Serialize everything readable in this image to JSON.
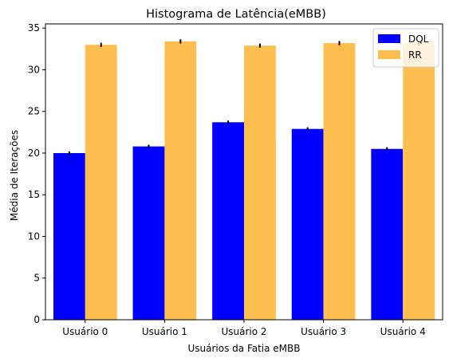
{
  "chart_data": {
    "type": "bar",
    "title": "Histograma de Latência(eMBB)",
    "xlabel": "Usuários da Fatia eMBB",
    "ylabel": "Média de Iterações",
    "categories": [
      "Usuário 0",
      "Usuário 1",
      "Usuário 2",
      "Usuário 3",
      "Usuário 4"
    ],
    "ylim": [
      0,
      35.5
    ],
    "yticks": [
      0,
      5,
      10,
      15,
      20,
      25,
      30,
      35
    ],
    "grid": false,
    "legend_position": "top-right",
    "series": [
      {
        "name": "DQL",
        "color": "#0000ff",
        "values": [
          20.0,
          20.8,
          23.7,
          22.9,
          20.5
        ],
        "errors": [
          0.2,
          0.2,
          0.2,
          0.2,
          0.2
        ]
      },
      {
        "name": "RR",
        "color": "#ffbe50",
        "values": [
          33.0,
          33.4,
          32.9,
          33.2,
          33.2
        ],
        "errors": [
          0.25,
          0.25,
          0.25,
          0.25,
          0.25
        ]
      }
    ]
  }
}
